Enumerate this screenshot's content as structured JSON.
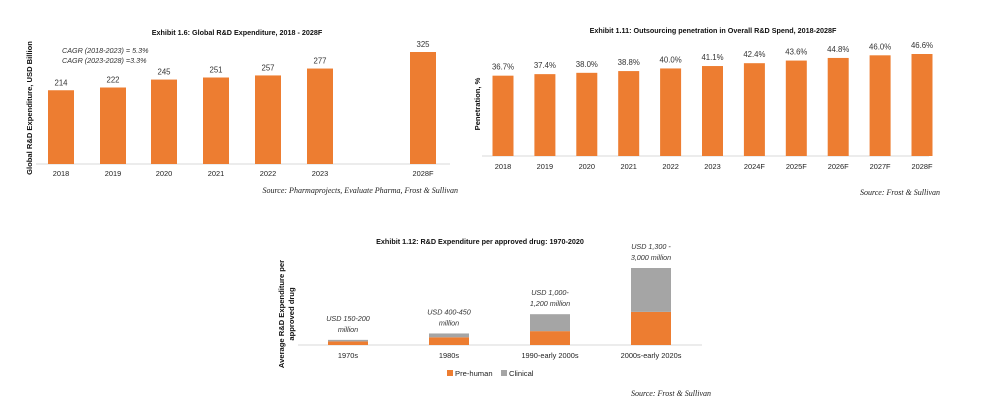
{
  "colors": {
    "orange": "#ED7D31",
    "gray": "#A5A5A5",
    "axis": "#D9D9D9"
  },
  "chart_data": [
    {
      "id": "exhibit-1-6",
      "type": "bar",
      "title": "Exhibit 1.6: Global R&D Expenditure, 2018 - 2028F",
      "xlabel": "",
      "ylabel": "Global R&D Expenditure, USD Billion",
      "categories": [
        "2018",
        "2019",
        "2020",
        "2021",
        "2022",
        "2023",
        "",
        "2028F"
      ],
      "values": [
        214,
        222,
        245,
        251,
        257,
        277,
        null,
        325
      ],
      "data_labels": [
        "214",
        "222",
        "245",
        "251",
        "257",
        "277",
        "",
        "325"
      ],
      "ylim": [
        0,
        325
      ],
      "grid": false,
      "annotations": [
        "CAGR (2018-2023) = 5.3%",
        "CAGR (2023-2028) =3.3%"
      ],
      "source": "Source: Pharmaprojects, Evaluate Pharma, Frost & Sullivan"
    },
    {
      "id": "exhibit-1-11",
      "type": "bar",
      "title": "Exhibit 1.11: Outsourcing penetration in Overall R&D Spend, 2018-2028F",
      "xlabel": "",
      "ylabel": "Penetration, %",
      "categories": [
        "2018",
        "2019",
        "2020",
        "2021",
        "2022",
        "2023",
        "2024F",
        "2025F",
        "2026F",
        "2027F",
        "2028F"
      ],
      "values": [
        36.7,
        37.4,
        38.0,
        38.8,
        40.0,
        41.1,
        42.4,
        43.6,
        44.8,
        46.0,
        46.6
      ],
      "data_labels": [
        "36.7%",
        "37.4%",
        "38.0%",
        "38.8%",
        "40.0%",
        "41.1%",
        "42.4%",
        "43.6%",
        "44.8%",
        "46.0%",
        "46.6%"
      ],
      "ylim": [
        0,
        46.6
      ],
      "grid": false,
      "source": "Source: Frost & Sullivan"
    },
    {
      "id": "exhibit-1-12",
      "type": "bar",
      "stacked": true,
      "title": "Exhibit 1.12: R&D Expenditure per approved drug: 1970-2020",
      "xlabel": "",
      "ylabel": "Average R&D Expenditure per approved drug",
      "categories": [
        "1970s",
        "1980s",
        "1990-early 2000s",
        "2000s-early 2020s"
      ],
      "series": [
        {
          "name": "Pre-human",
          "color": "#ED7D31",
          "values": [
            140,
            300,
            540,
            1290
          ]
        },
        {
          "name": "Clinical",
          "color": "#A5A5A5",
          "values": [
            60,
            150,
            660,
            1710
          ]
        }
      ],
      "data_labels": [
        [
          "USD 150-200",
          "million"
        ],
        [
          "USD 400-450",
          "million"
        ],
        [
          "USD 1,000-",
          "1,200 million"
        ],
        [
          "USD 1,300 -",
          "3,000 million"
        ]
      ],
      "ylim": [
        0,
        3000
      ],
      "value_units": "USD million (approximate, estimated from bar heights)",
      "grid": false,
      "legend": {
        "placement": "bottom",
        "entries": [
          "Pre-human",
          "Clinical"
        ]
      },
      "source": "Source: Frost & Sullivan"
    }
  ]
}
